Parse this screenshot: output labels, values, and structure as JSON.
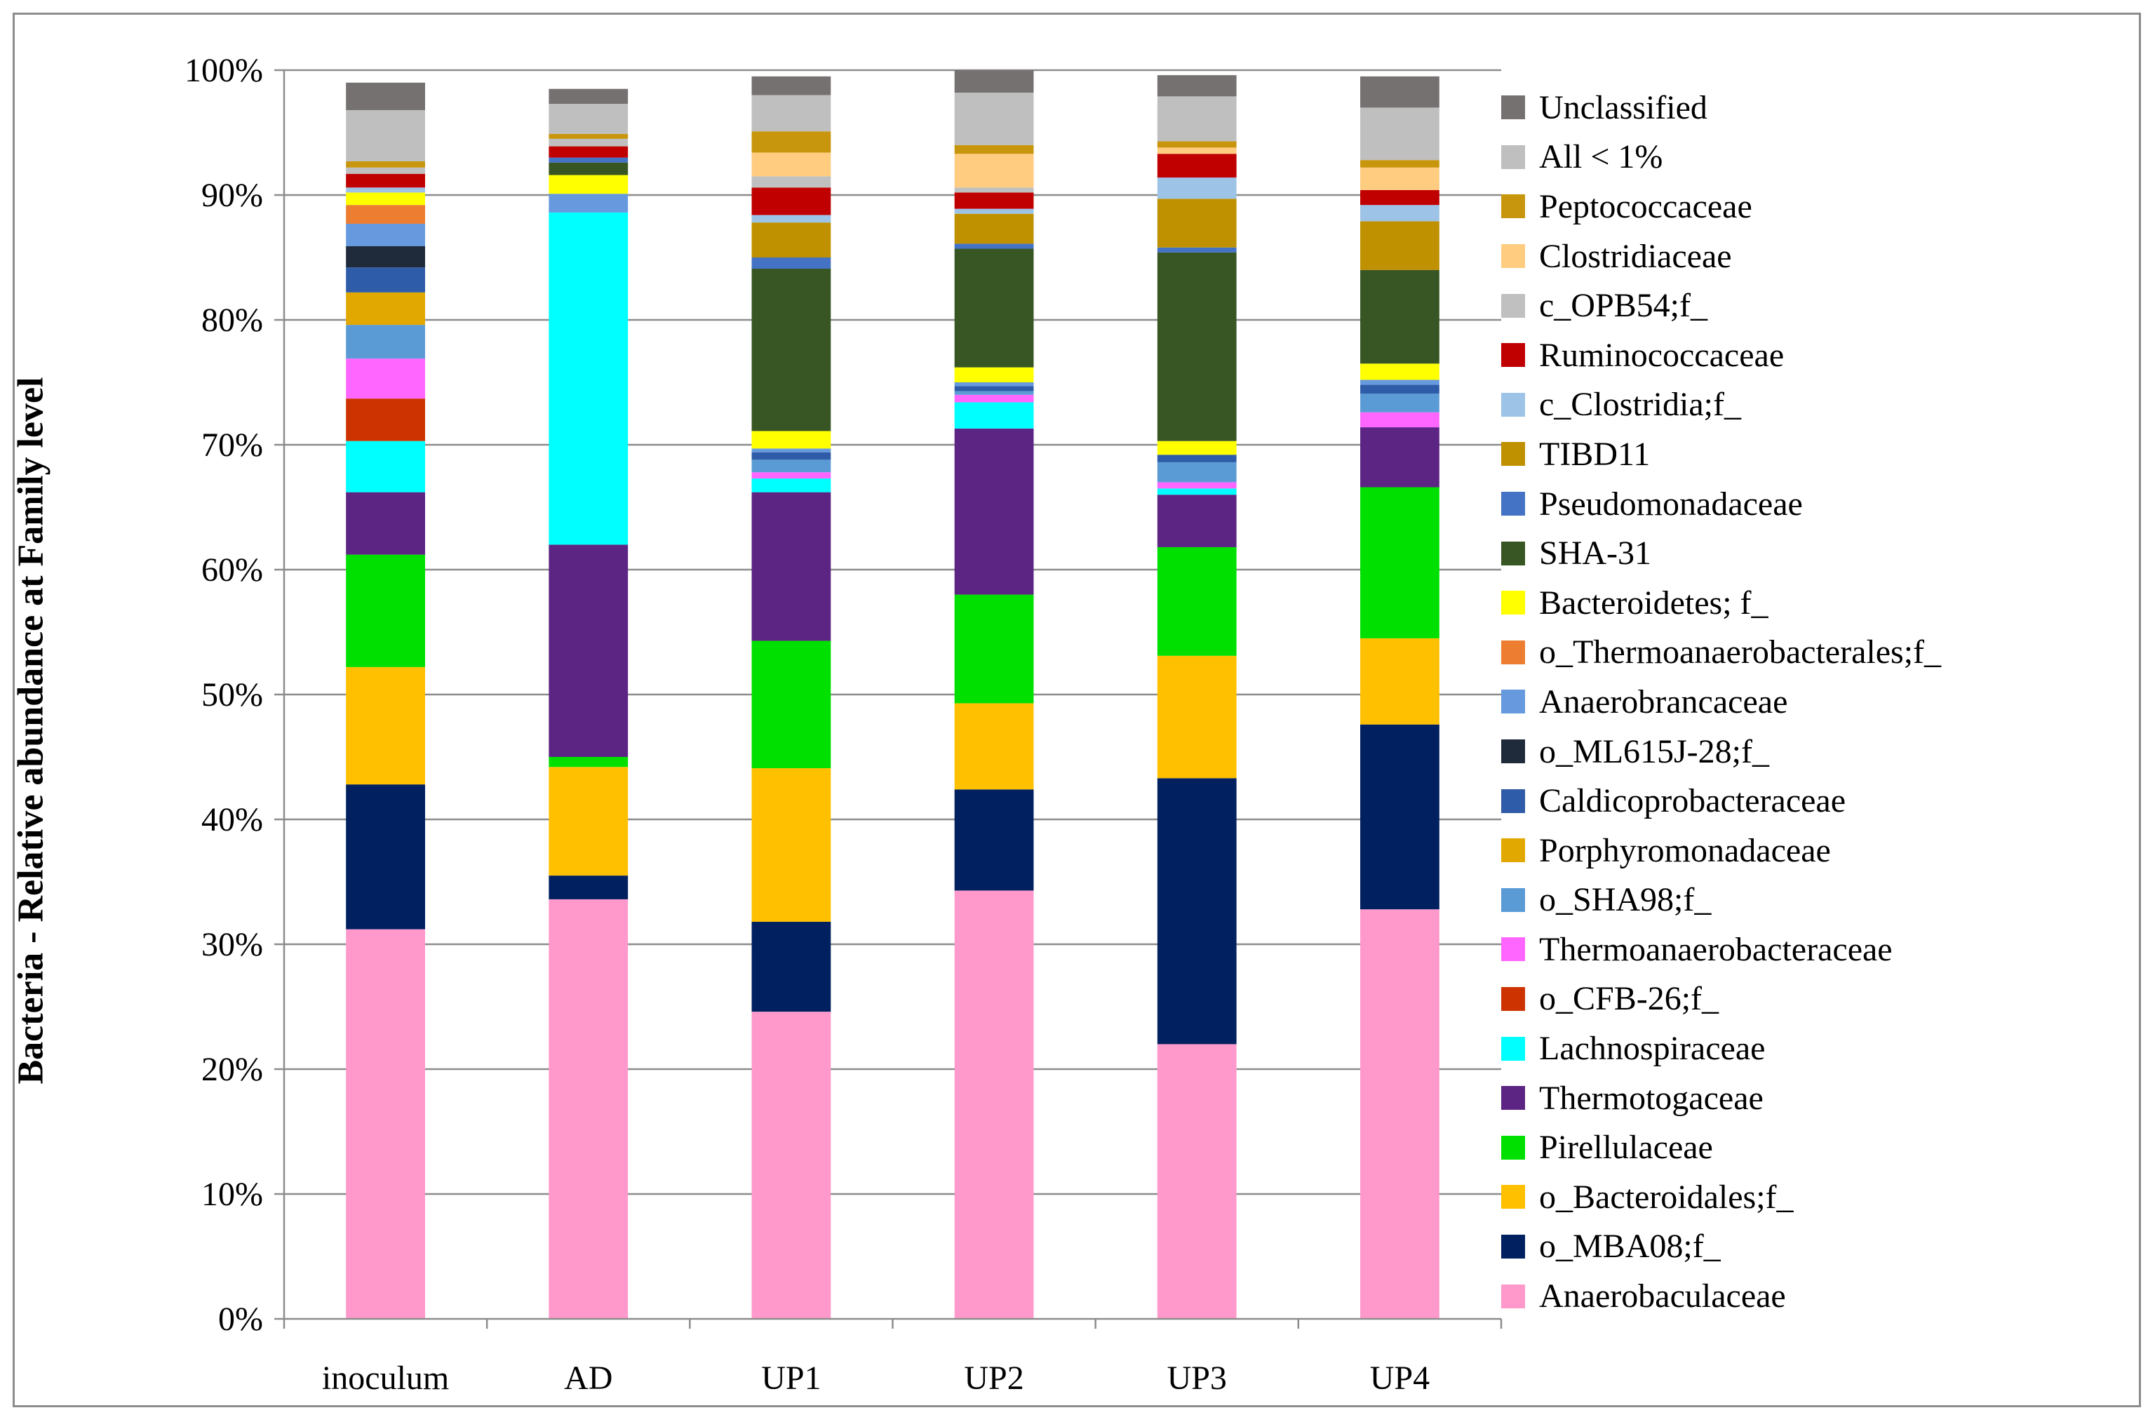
{
  "chart_data": {
    "type": "bar",
    "stacked": true,
    "percent": true,
    "title": "",
    "xlabel": "",
    "ylabel": "Bacteria - Relative abundance at Family level",
    "ylim": [
      0,
      100
    ],
    "yticks": [
      "0%",
      "10%",
      "20%",
      "30%",
      "40%",
      "50%",
      "60%",
      "70%",
      "80%",
      "90%",
      "100%"
    ],
    "grid": true,
    "legend_position": "right",
    "categories": [
      "inoculum",
      "AD",
      "UP1",
      "UP2",
      "UP3",
      "UP4"
    ],
    "series": [
      {
        "name": "Anaerobaculaceae",
        "color": "#ff99cc",
        "values": [
          31.2,
          33.6,
          24.6,
          34.3,
          22.0,
          32.8
        ]
      },
      {
        "name": "o_MBA08;f_",
        "color": "#002060",
        "values": [
          11.6,
          1.9,
          7.2,
          8.1,
          21.3,
          14.8
        ]
      },
      {
        "name": "o_Bacteroidales;f_",
        "color": "#ffc000",
        "values": [
          9.4,
          8.7,
          12.3,
          6.9,
          9.8,
          6.9
        ]
      },
      {
        "name": "Pirellulaceae",
        "color": "#00e000",
        "values": [
          9.0,
          0.8,
          10.2,
          8.7,
          8.7,
          12.1
        ]
      },
      {
        "name": "Thermotogaceae",
        "color": "#5c2483",
        "values": [
          5.0,
          17.0,
          11.9,
          13.3,
          4.2,
          4.8
        ]
      },
      {
        "name": "Lachnospiraceae",
        "color": "#00ffff",
        "values": [
          4.1,
          26.6,
          1.1,
          2.1,
          0.5,
          0.0
        ]
      },
      {
        "name": "o_CFB-26;f_",
        "color": "#cc3300",
        "values": [
          3.4,
          0.0,
          0.0,
          0.0,
          0.0,
          0.0
        ]
      },
      {
        "name": "Thermoanaerobacteraceae",
        "color": "#ff66ff",
        "values": [
          3.2,
          0.0,
          0.5,
          0.6,
          0.5,
          1.2
        ]
      },
      {
        "name": "o_SHA98;f_",
        "color": "#5b9bd5",
        "values": [
          2.7,
          0.0,
          1.0,
          0.3,
          1.6,
          1.5
        ]
      },
      {
        "name": "Porphyromonadaceae",
        "color": "#e0a800",
        "values": [
          2.6,
          0.0,
          0.0,
          0.0,
          0.0,
          0.0
        ]
      },
      {
        "name": "Caldicoprobacteraceae",
        "color": "#2e5ca8",
        "values": [
          2.0,
          0.0,
          0.6,
          0.4,
          0.6,
          0.7
        ]
      },
      {
        "name": "o_ML615J-28;f_",
        "color": "#1f2a3a",
        "values": [
          1.7,
          0.0,
          0.0,
          0.0,
          0.0,
          0.0
        ]
      },
      {
        "name": "Anaerobrancaceae",
        "color": "#6699dd",
        "values": [
          1.8,
          1.5,
          0.3,
          0.3,
          0.0,
          0.4
        ]
      },
      {
        "name": "o_Thermoanaerobacterales;f_",
        "color": "#ed7d31",
        "values": [
          1.5,
          0.0,
          0.0,
          0.0,
          0.0,
          0.0
        ]
      },
      {
        "name": "Bacteroidetes; f_",
        "color": "#ffff00",
        "values": [
          1.0,
          1.5,
          1.4,
          1.2,
          1.1,
          1.3
        ]
      },
      {
        "name": "SHA-31",
        "color": "#375623",
        "values": [
          0.0,
          1.0,
          13.0,
          9.5,
          15.1,
          7.5
        ]
      },
      {
        "name": "Pseudomonadaceae",
        "color": "#4472c4",
        "values": [
          0.0,
          0.4,
          0.9,
          0.4,
          0.4,
          0.0
        ]
      },
      {
        "name": "TIBD11",
        "color": "#bf9000",
        "values": [
          0.0,
          0.0,
          2.8,
          2.4,
          3.9,
          3.9
        ]
      },
      {
        "name": "c_Clostridia;f_",
        "color": "#9dc3e6",
        "values": [
          0.4,
          0.0,
          0.6,
          0.4,
          1.7,
          1.3
        ]
      },
      {
        "name": "Ruminococcaceae",
        "color": "#c00000",
        "values": [
          1.1,
          0.9,
          2.2,
          1.3,
          1.9,
          1.2
        ]
      },
      {
        "name": "c_OPB54;f_",
        "color": "#c0c0c0",
        "values": [
          0.5,
          0.6,
          0.9,
          0.4,
          0.0,
          0.0
        ]
      },
      {
        "name": "Clostridiaceae",
        "color": "#ffcc80",
        "values": [
          0.0,
          0.0,
          1.9,
          2.7,
          0.5,
          1.8
        ]
      },
      {
        "name": "Peptococcaceae",
        "color": "#c8960c",
        "values": [
          0.5,
          0.4,
          1.7,
          0.7,
          0.5,
          0.6
        ]
      },
      {
        "name": "All < 1%",
        "color": "#bfbfbf",
        "values": [
          4.1,
          2.4,
          2.9,
          4.2,
          3.6,
          4.2
        ]
      },
      {
        "name": "Unclassified",
        "color": "#767171",
        "values": [
          2.2,
          1.2,
          1.5,
          1.8,
          1.7,
          2.5
        ]
      }
    ]
  }
}
